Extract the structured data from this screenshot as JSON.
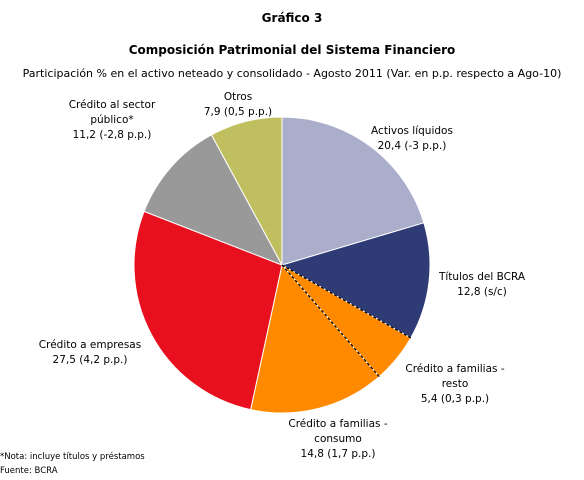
{
  "chart_data": {
    "type": "pie",
    "title": "Gráfico 3",
    "subtitle": "Composición Patrimonial del Sistema Financiero",
    "description": "Participación % en el activo neteado y consolidado - Agosto 2011 (Var. en p.p. respecto a Ago-10)",
    "categories": [
      "Activos líquidos",
      "Títulos del BCRA",
      "Crédito a familias - resto",
      "Crédito a familias - consumo",
      "Crédito a empresas",
      "Crédito al sector público*",
      "Otros"
    ],
    "values": [
      20.4,
      12.8,
      5.4,
      14.8,
      27.5,
      11.2,
      7.9
    ],
    "value_labels": [
      "20,4",
      "12,8",
      "5,4",
      "14,8",
      "27,5",
      "11,2",
      "7,9"
    ],
    "changes": [
      "(-3 p.p.)",
      "(s/c)",
      "(0,3 p.p.)",
      "(1,7 p.p.)",
      "(4,2 p.p.)",
      "(-2,8 p.p.)",
      "(0,5 p.p.)"
    ],
    "colors": [
      "#aaaecb",
      "#2f3b75",
      "#ff8a00",
      "#ff8a00",
      "#e8101e",
      "#999999",
      "#bfbf5f"
    ],
    "note": "*Nota: incluye títulos y préstamos",
    "source": "Fuente: BCRA"
  }
}
